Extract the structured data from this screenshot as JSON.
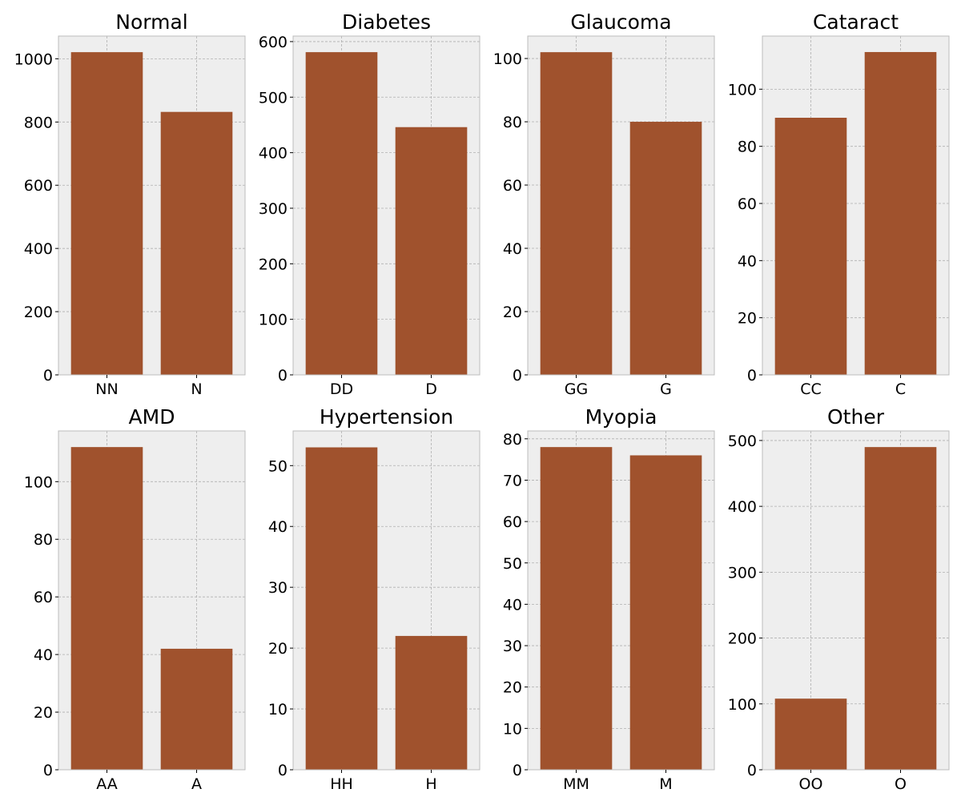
{
  "figure": {
    "colors": {
      "bar": "#A0522D",
      "axes_bg": "#EEEEEE",
      "axes_edge": "#BCBCBC",
      "grid": "#B0B0B0",
      "text": "#000000"
    },
    "grid": true,
    "layout": "2 rows x 4 columns"
  },
  "chart_data": [
    {
      "type": "bar",
      "title": "Normal",
      "categories": [
        "NN",
        "N"
      ],
      "values": [
        1021,
        832
      ],
      "ylim": [
        0,
        1072
      ],
      "yticks": [
        0,
        200,
        400,
        600,
        800,
        1000
      ],
      "xlabel": "",
      "ylabel": ""
    },
    {
      "type": "bar",
      "title": "Diabetes",
      "categories": [
        "DD",
        "D"
      ],
      "values": [
        581,
        446
      ],
      "ylim": [
        0,
        610
      ],
      "yticks": [
        0,
        100,
        200,
        300,
        400,
        500,
        600
      ],
      "xlabel": "",
      "ylabel": ""
    },
    {
      "type": "bar",
      "title": "Glaucoma",
      "categories": [
        "GG",
        "G"
      ],
      "values": [
        102,
        80
      ],
      "ylim": [
        0,
        107.1
      ],
      "yticks": [
        0,
        20,
        40,
        60,
        80,
        100
      ],
      "xlabel": "",
      "ylabel": ""
    },
    {
      "type": "bar",
      "title": "Cataract",
      "categories": [
        "CC",
        "C"
      ],
      "values": [
        90,
        113
      ],
      "ylim": [
        0,
        118.6
      ],
      "yticks": [
        0,
        20,
        40,
        60,
        80,
        100
      ],
      "xlabel": "",
      "ylabel": ""
    },
    {
      "type": "bar",
      "title": "AMD",
      "categories": [
        "AA",
        "A"
      ],
      "values": [
        112,
        42
      ],
      "ylim": [
        0,
        117.6
      ],
      "yticks": [
        0,
        20,
        40,
        60,
        80,
        100
      ],
      "xlabel": "",
      "ylabel": ""
    },
    {
      "type": "bar",
      "title": "Hypertension",
      "categories": [
        "HH",
        "H"
      ],
      "values": [
        53,
        22
      ],
      "ylim": [
        0,
        55.7
      ],
      "yticks": [
        0,
        10,
        20,
        30,
        40,
        50
      ],
      "xlabel": "",
      "ylabel": ""
    },
    {
      "type": "bar",
      "title": "Myopia",
      "categories": [
        "MM",
        "M"
      ],
      "values": [
        78,
        76
      ],
      "ylim": [
        0,
        81.9
      ],
      "yticks": [
        0,
        10,
        20,
        30,
        40,
        50,
        60,
        70,
        80
      ],
      "xlabel": "",
      "ylabel": ""
    },
    {
      "type": "bar",
      "title": "Other",
      "categories": [
        "OO",
        "O"
      ],
      "values": [
        108,
        490
      ],
      "ylim": [
        0,
        514.5
      ],
      "yticks": [
        0,
        100,
        200,
        300,
        400,
        500
      ],
      "xlabel": "",
      "ylabel": ""
    }
  ]
}
